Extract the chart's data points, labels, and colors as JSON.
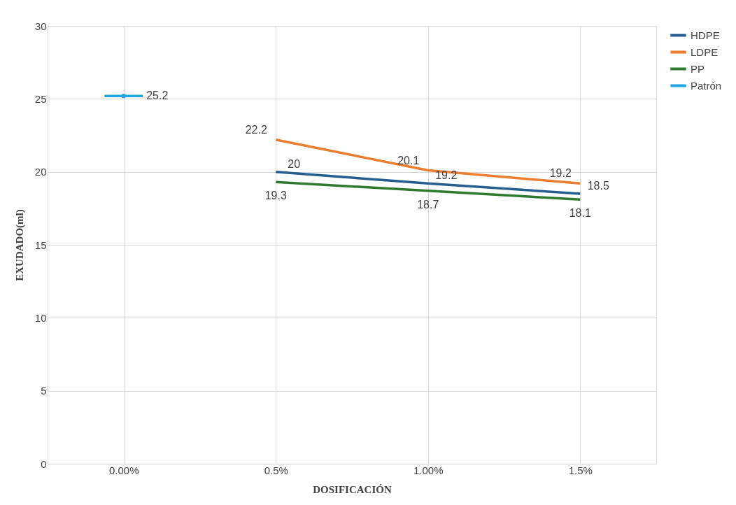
{
  "chart_data": {
    "type": "line",
    "xlabel": "DOSIFICACIÓN",
    "ylabel": "EXUDADO(ml)",
    "categories": [
      "0.00%",
      "0.5%",
      "1.00%",
      "1.5%"
    ],
    "series": [
      {
        "name": "HDPE",
        "color": "#255e91",
        "values": [
          null,
          20,
          19.2,
          18.5
        ]
      },
      {
        "name": "LDPE",
        "color": "#ed7d31",
        "values": [
          null,
          22.2,
          20.1,
          19.2
        ]
      },
      {
        "name": "PP",
        "color": "#2e7a2e",
        "values": [
          null,
          19.3,
          18.7,
          18.1
        ]
      },
      {
        "name": "Patrón",
        "color": "#1ea7e0",
        "values": [
          25.2,
          null,
          null,
          null
        ]
      }
    ],
    "ylim": [
      0,
      30
    ],
    "yticks": [
      0,
      5,
      10,
      15,
      20,
      25,
      30
    ],
    "grid": true,
    "legend": "right",
    "data_labels": true,
    "marker": "none",
    "line_style": "solid"
  }
}
